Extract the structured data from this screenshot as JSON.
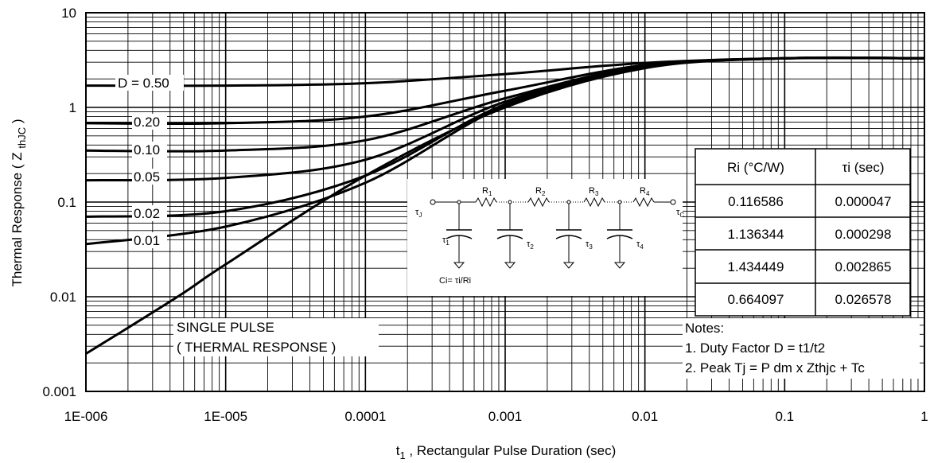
{
  "chart_data": {
    "type": "line",
    "x_scale": "log",
    "y_scale": "log",
    "xlim": [
      1e-06,
      1
    ],
    "ylim": [
      0.001,
      10
    ],
    "x_ticks": [
      "1E-006",
      "1E-005",
      "0.0001",
      "0.001",
      "0.01",
      "0.1",
      "1"
    ],
    "y_ticks": [
      "10",
      "1",
      "0.1",
      "0.01",
      "0.001"
    ],
    "xlabel_main": "t",
    "xlabel_sub": "1",
    "xlabel_rest": " , Rectangular Pulse Duration (sec)",
    "ylabel_main": "Thermal Response ( Z ",
    "ylabel_sub": "thJC",
    "ylabel_end": " )",
    "grid": true,
    "series": [
      {
        "name": "D = 0.50",
        "points": [
          [
            1e-06,
            1.7
          ],
          [
            1e-05,
            1.7
          ],
          [
            0.0001,
            1.8
          ],
          [
            0.001,
            2.25
          ],
          [
            0.01,
            2.95
          ],
          [
            0.1,
            3.3
          ],
          [
            1,
            3.3
          ]
        ]
      },
      {
        "name": "0.20",
        "points": [
          [
            1e-06,
            0.68
          ],
          [
            1e-05,
            0.68
          ],
          [
            0.0001,
            0.8
          ],
          [
            0.001,
            1.5
          ],
          [
            0.01,
            2.8
          ],
          [
            0.1,
            3.3
          ],
          [
            1,
            3.3
          ]
        ]
      },
      {
        "name": "0.10",
        "points": [
          [
            1e-06,
            0.35
          ],
          [
            1e-05,
            0.35
          ],
          [
            0.0001,
            0.45
          ],
          [
            0.001,
            1.25
          ],
          [
            0.01,
            2.75
          ],
          [
            0.1,
            3.3
          ],
          [
            1,
            3.3
          ]
        ]
      },
      {
        "name": "0.05",
        "points": [
          [
            1e-06,
            0.17
          ],
          [
            1e-05,
            0.18
          ],
          [
            0.0001,
            0.28
          ],
          [
            0.001,
            1.15
          ],
          [
            0.01,
            2.7
          ],
          [
            0.1,
            3.3
          ],
          [
            1,
            3.3
          ]
        ]
      },
      {
        "name": "0.02",
        "points": [
          [
            1e-06,
            0.07
          ],
          [
            1e-05,
            0.08
          ],
          [
            0.0001,
            0.19
          ],
          [
            0.001,
            1.08
          ],
          [
            0.01,
            2.65
          ],
          [
            0.1,
            3.3
          ],
          [
            1,
            3.3
          ]
        ]
      },
      {
        "name": "0.01",
        "points": [
          [
            1e-06,
            0.036
          ],
          [
            1e-05,
            0.055
          ],
          [
            0.0001,
            0.16
          ],
          [
            0.001,
            1.04
          ],
          [
            0.01,
            2.65
          ],
          [
            0.1,
            3.3
          ],
          [
            1,
            3.3
          ]
        ]
      },
      {
        "name": "SINGLE PULSE",
        "points": [
          [
            1e-06,
            0.0025
          ],
          [
            2e-06,
            0.0047
          ],
          [
            5e-06,
            0.011
          ],
          [
            1e-05,
            0.022
          ],
          [
            0.0001,
            0.19
          ],
          [
            0.001,
            1.0
          ],
          [
            0.01,
            2.6
          ],
          [
            0.1,
            3.3
          ],
          [
            1,
            3.3
          ]
        ]
      }
    ],
    "curve_labels": [
      "D = 0.50",
      "0.20",
      "0.10",
      "0.05",
      "0.02",
      "0.01"
    ],
    "annotation_lines": [
      "SINGLE PULSE",
      "( THERMAL RESPONSE )"
    ],
    "notes": [
      "Notes:",
      "1. Duty Factor D = t1/t2",
      "2. Peak Tj = P dm x Zthjc + Tc"
    ],
    "table": {
      "headers": [
        "Ri (°C/W)",
        "τi (sec)"
      ],
      "rows": [
        [
          "0.116586",
          "0.000047"
        ],
        [
          "1.136344",
          "0.000298"
        ],
        [
          "1.434449",
          "0.002865"
        ],
        [
          "0.664097",
          "0.026578"
        ]
      ]
    },
    "circuit": {
      "resistors": [
        "R",
        "R",
        "R",
        "R"
      ],
      "resistor_subs": [
        "1",
        "2",
        "3",
        "4"
      ],
      "taus": [
        "τ",
        "τ",
        "τ",
        "τ"
      ],
      "tau_subs": [
        "1",
        "2",
        "3",
        "4"
      ],
      "left_node": "τ",
      "left_sub": "J",
      "right_node": "τ",
      "right_sub": "C",
      "formula": "Ci= τi/Ri"
    }
  }
}
